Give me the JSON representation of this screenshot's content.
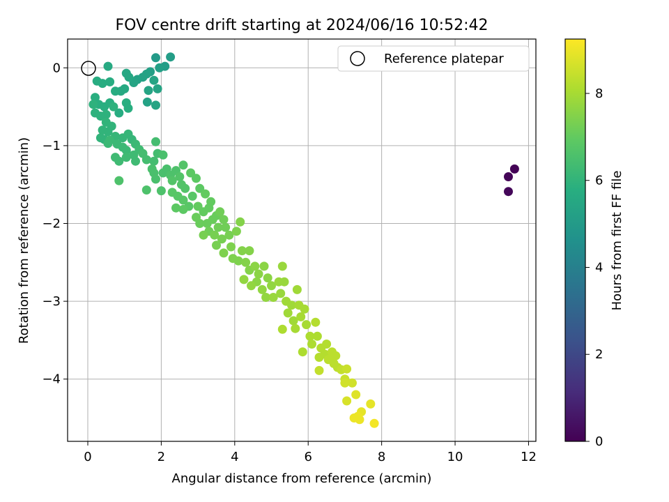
{
  "chart_data": {
    "type": "scatter",
    "title": "FOV centre drift starting at 2024/06/16 10:52:42",
    "xlabel": "Angular distance from reference (arcmin)",
    "ylabel": "Rotation from reference (arcmin)",
    "xlim": [
      -0.55,
      12.2
    ],
    "ylim": [
      -4.8,
      0.37
    ],
    "xticks": [
      0,
      2,
      4,
      6,
      8,
      10,
      12
    ],
    "yticks": [
      0,
      -1,
      -2,
      -3,
      -4
    ],
    "xtick_labels": [
      "0",
      "2",
      "4",
      "6",
      "8",
      "10",
      "12"
    ],
    "ytick_labels": [
      "0",
      "−1",
      "−2",
      "−3",
      "−4"
    ],
    "grid": true,
    "colormap": "viridis",
    "colorbar": {
      "label": "Hours from first FF file",
      "range": [
        0,
        9.25
      ],
      "ticks": [
        0,
        2,
        4,
        6,
        8
      ],
      "tick_labels": [
        "0",
        "2",
        "4",
        "6",
        "8"
      ]
    },
    "legend": {
      "position": "top-right",
      "label": "Reference platepar"
    },
    "reference_point": {
      "x": 0,
      "y": 0
    },
    "series": [
      {
        "columns": [
          "x",
          "y",
          "hours"
        ],
        "points": [
          [
            11.62,
            -1.3,
            0.05
          ],
          [
            11.45,
            -1.4,
            0.1
          ],
          [
            11.45,
            -1.59,
            0.15
          ],
          [
            1.85,
            0.13,
            5.0
          ],
          [
            2.25,
            0.14,
            5.1
          ],
          [
            2.1,
            0.02,
            5.1
          ],
          [
            1.95,
            0.0,
            5.2
          ],
          [
            1.7,
            -0.05,
            5.2
          ],
          [
            1.6,
            -0.08,
            5.3
          ],
          [
            1.5,
            -0.12,
            5.3
          ],
          [
            1.35,
            -0.15,
            5.3
          ],
          [
            1.8,
            -0.16,
            5.4
          ],
          [
            1.9,
            -0.27,
            5.4
          ],
          [
            1.65,
            -0.29,
            5.4
          ],
          [
            1.85,
            -0.48,
            5.4
          ],
          [
            1.62,
            -0.44,
            5.3
          ],
          [
            1.25,
            -0.19,
            5.4
          ],
          [
            1.05,
            -0.07,
            5.5
          ],
          [
            1.12,
            -0.12,
            5.5
          ],
          [
            0.55,
            0.02,
            5.6
          ],
          [
            1.0,
            -0.27,
            5.6
          ],
          [
            0.9,
            -0.3,
            5.6
          ],
          [
            0.75,
            -0.3,
            5.7
          ],
          [
            0.6,
            -0.18,
            5.7
          ],
          [
            0.4,
            -0.2,
            5.7
          ],
          [
            0.25,
            -0.17,
            5.7
          ],
          [
            0.85,
            -0.58,
            5.7
          ],
          [
            1.05,
            -0.45,
            5.8
          ],
          [
            1.1,
            -0.52,
            5.8
          ],
          [
            0.2,
            -0.38,
            5.8
          ],
          [
            0.3,
            -0.47,
            5.8
          ],
          [
            0.45,
            -0.5,
            5.8
          ],
          [
            0.6,
            -0.45,
            5.8
          ],
          [
            0.7,
            -0.5,
            5.9
          ],
          [
            0.5,
            -0.6,
            5.9
          ],
          [
            0.35,
            -0.62,
            5.9
          ],
          [
            0.2,
            -0.58,
            5.9
          ],
          [
            0.15,
            -0.47,
            5.9
          ],
          [
            0.4,
            -0.8,
            6.0
          ],
          [
            0.55,
            -0.82,
            6.0
          ],
          [
            0.45,
            -0.92,
            6.0
          ],
          [
            0.35,
            -0.9,
            6.0
          ],
          [
            0.5,
            -0.7,
            6.0
          ],
          [
            0.65,
            -0.75,
            6.0
          ],
          [
            0.75,
            -0.88,
            6.1
          ],
          [
            0.95,
            -0.9,
            6.1
          ],
          [
            1.1,
            -0.85,
            6.1
          ],
          [
            1.2,
            -0.92,
            6.1
          ],
          [
            0.6,
            -0.93,
            6.2
          ],
          [
            0.55,
            -0.97,
            6.2
          ],
          [
            0.8,
            -0.98,
            6.2
          ],
          [
            0.95,
            -1.02,
            6.2
          ],
          [
            1.05,
            -1.06,
            6.2
          ],
          [
            1.3,
            -0.98,
            6.2
          ],
          [
            1.4,
            -1.05,
            6.3
          ],
          [
            1.25,
            -1.12,
            6.3
          ],
          [
            1.3,
            -1.2,
            6.3
          ],
          [
            0.75,
            -1.15,
            6.3
          ],
          [
            0.85,
            -1.2,
            6.3
          ],
          [
            1.05,
            -1.15,
            6.3
          ],
          [
            1.5,
            -1.1,
            6.4
          ],
          [
            1.6,
            -1.18,
            6.4
          ],
          [
            1.85,
            -0.95,
            6.4
          ],
          [
            1.9,
            -1.1,
            6.4
          ],
          [
            1.8,
            -1.2,
            6.4
          ],
          [
            2.05,
            -1.12,
            6.5
          ],
          [
            1.75,
            -1.3,
            6.5
          ],
          [
            1.8,
            -1.35,
            6.5
          ],
          [
            1.85,
            -1.43,
            6.5
          ],
          [
            2.05,
            -1.35,
            6.5
          ],
          [
            2.15,
            -1.3,
            6.5
          ],
          [
            2.25,
            -1.38,
            6.6
          ],
          [
            2.4,
            -1.32,
            6.6
          ],
          [
            1.6,
            -1.57,
            6.6
          ],
          [
            2.0,
            -1.58,
            6.6
          ],
          [
            0.85,
            -1.45,
            6.6
          ],
          [
            2.6,
            -1.25,
            6.7
          ],
          [
            2.5,
            -1.4,
            6.7
          ],
          [
            2.55,
            -1.5,
            6.7
          ],
          [
            2.65,
            -1.55,
            6.7
          ],
          [
            2.3,
            -1.45,
            6.7
          ],
          [
            2.3,
            -1.6,
            6.8
          ],
          [
            2.45,
            -1.65,
            6.8
          ],
          [
            2.6,
            -1.7,
            6.8
          ],
          [
            2.75,
            -1.78,
            6.8
          ],
          [
            2.85,
            -1.65,
            6.8
          ],
          [
            2.4,
            -1.8,
            6.9
          ],
          [
            2.6,
            -1.82,
            6.9
          ],
          [
            2.8,
            -1.35,
            6.9
          ],
          [
            2.95,
            -1.42,
            6.9
          ],
          [
            3.05,
            -1.55,
            6.9
          ],
          [
            3.2,
            -1.62,
            7.0
          ],
          [
            3.35,
            -1.72,
            7.0
          ],
          [
            3.0,
            -1.78,
            7.0
          ],
          [
            3.15,
            -1.85,
            7.0
          ],
          [
            3.3,
            -1.8,
            7.0
          ],
          [
            2.95,
            -1.92,
            7.1
          ],
          [
            3.05,
            -2.0,
            7.1
          ],
          [
            3.25,
            -2.0,
            7.1
          ],
          [
            3.4,
            -1.95,
            7.1
          ],
          [
            3.5,
            -1.9,
            7.1
          ],
          [
            3.6,
            -1.85,
            7.2
          ],
          [
            3.7,
            -1.95,
            7.2
          ],
          [
            3.55,
            -2.05,
            7.2
          ],
          [
            3.75,
            -2.05,
            7.2
          ],
          [
            3.3,
            -2.1,
            7.2
          ],
          [
            3.15,
            -2.15,
            7.3
          ],
          [
            3.45,
            -2.15,
            7.3
          ],
          [
            3.65,
            -2.2,
            7.3
          ],
          [
            3.85,
            -2.15,
            7.3
          ],
          [
            3.5,
            -2.28,
            7.3
          ],
          [
            3.7,
            -2.38,
            7.4
          ],
          [
            3.9,
            -2.3,
            7.4
          ],
          [
            4.05,
            -2.1,
            7.4
          ],
          [
            3.95,
            -2.45,
            7.4
          ],
          [
            4.1,
            -2.48,
            7.4
          ],
          [
            4.15,
            -1.98,
            7.5
          ],
          [
            4.2,
            -2.35,
            7.5
          ],
          [
            4.4,
            -2.35,
            7.5
          ],
          [
            4.3,
            -2.5,
            7.5
          ],
          [
            4.4,
            -2.6,
            7.5
          ],
          [
            4.55,
            -2.55,
            7.6
          ],
          [
            4.65,
            -2.65,
            7.6
          ],
          [
            4.8,
            -2.55,
            7.6
          ],
          [
            4.9,
            -2.7,
            7.6
          ],
          [
            4.6,
            -2.75,
            7.6
          ],
          [
            4.45,
            -2.8,
            7.7
          ],
          [
            4.25,
            -2.72,
            7.7
          ],
          [
            4.75,
            -2.85,
            7.7
          ],
          [
            5.0,
            -2.8,
            7.7
          ],
          [
            4.85,
            -2.95,
            7.7
          ],
          [
            5.05,
            -2.95,
            7.8
          ],
          [
            5.2,
            -2.75,
            7.8
          ],
          [
            5.3,
            -2.55,
            7.8
          ],
          [
            5.35,
            -2.75,
            7.8
          ],
          [
            5.25,
            -2.9,
            7.8
          ],
          [
            5.4,
            -3.0,
            7.9
          ],
          [
            5.55,
            -3.05,
            7.9
          ],
          [
            5.45,
            -3.15,
            7.9
          ],
          [
            5.6,
            -3.25,
            7.9
          ],
          [
            5.7,
            -2.85,
            7.9
          ],
          [
            5.75,
            -3.05,
            8.0
          ],
          [
            5.9,
            -3.1,
            8.0
          ],
          [
            5.8,
            -3.2,
            8.0
          ],
          [
            5.95,
            -3.3,
            8.0
          ],
          [
            5.65,
            -3.35,
            8.0
          ],
          [
            5.3,
            -3.36,
            8.1
          ],
          [
            6.05,
            -3.45,
            8.1
          ],
          [
            5.85,
            -3.65,
            8.1
          ],
          [
            6.1,
            -3.55,
            8.1
          ],
          [
            6.25,
            -3.45,
            8.1
          ],
          [
            6.2,
            -3.27,
            8.2
          ],
          [
            6.35,
            -3.6,
            8.2
          ],
          [
            6.5,
            -3.55,
            8.2
          ],
          [
            6.45,
            -3.68,
            8.2
          ],
          [
            6.3,
            -3.72,
            8.2
          ],
          [
            6.55,
            -3.75,
            8.3
          ],
          [
            6.65,
            -3.65,
            8.3
          ],
          [
            6.75,
            -3.7,
            8.3
          ],
          [
            6.7,
            -3.8,
            8.3
          ],
          [
            6.8,
            -3.85,
            8.3
          ],
          [
            6.9,
            -3.88,
            8.4
          ],
          [
            7.05,
            -3.87,
            8.5
          ],
          [
            7.0,
            -4.0,
            8.5
          ],
          [
            7.2,
            -4.05,
            8.6
          ],
          [
            7.0,
            -4.05,
            8.6
          ],
          [
            7.05,
            -4.28,
            8.7
          ],
          [
            7.3,
            -4.2,
            8.8
          ],
          [
            7.7,
            -4.32,
            8.9
          ],
          [
            7.45,
            -4.42,
            8.9
          ],
          [
            7.35,
            -4.48,
            9.0
          ],
          [
            7.4,
            -4.52,
            9.0
          ],
          [
            7.25,
            -4.5,
            9.0
          ],
          [
            7.8,
            -4.57,
            9.1
          ],
          [
            6.3,
            -3.89,
            8.4
          ]
        ]
      }
    ]
  }
}
